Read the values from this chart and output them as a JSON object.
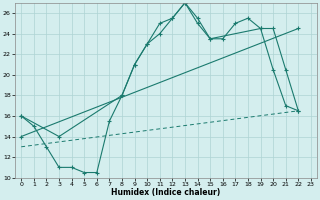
{
  "xlabel": "Humidex (Indice chaleur)",
  "background_color": "#d4eeee",
  "grid_color": "#aed4d4",
  "line_color": "#1a7a6e",
  "xlim": [
    -0.5,
    23.5
  ],
  "ylim": [
    10,
    27
  ],
  "xticks": [
    0,
    1,
    2,
    3,
    4,
    5,
    6,
    7,
    8,
    9,
    10,
    11,
    12,
    13,
    14,
    15,
    16,
    17,
    18,
    19,
    20,
    21,
    22,
    23
  ],
  "yticks": [
    10,
    12,
    14,
    16,
    18,
    20,
    22,
    24,
    26
  ],
  "line1_x": [
    0,
    1,
    2,
    3,
    4,
    5,
    6,
    7,
    8,
    9,
    10,
    11,
    12,
    13,
    14,
    15,
    16,
    17,
    18,
    19,
    20,
    21,
    22
  ],
  "line1_y": [
    16,
    15,
    13,
    11,
    11,
    10.5,
    10.5,
    15.5,
    18,
    21,
    23,
    25,
    25.5,
    27,
    25,
    23.5,
    23.5,
    25,
    25.5,
    24.5,
    20.5,
    17,
    16.5
  ],
  "line2_x": [
    0,
    3,
    8,
    9,
    10,
    11,
    12,
    13,
    14,
    15,
    19,
    20,
    21,
    22
  ],
  "line2_y": [
    16,
    14,
    18,
    21,
    23,
    24,
    25.5,
    27,
    25.5,
    23.5,
    24.5,
    24.5,
    20.5,
    16.5
  ],
  "line3_x": [
    0,
    22
  ],
  "line3_y": [
    14,
    24.5
  ],
  "line4_x": [
    0,
    22
  ],
  "line4_y": [
    13,
    16.5
  ]
}
